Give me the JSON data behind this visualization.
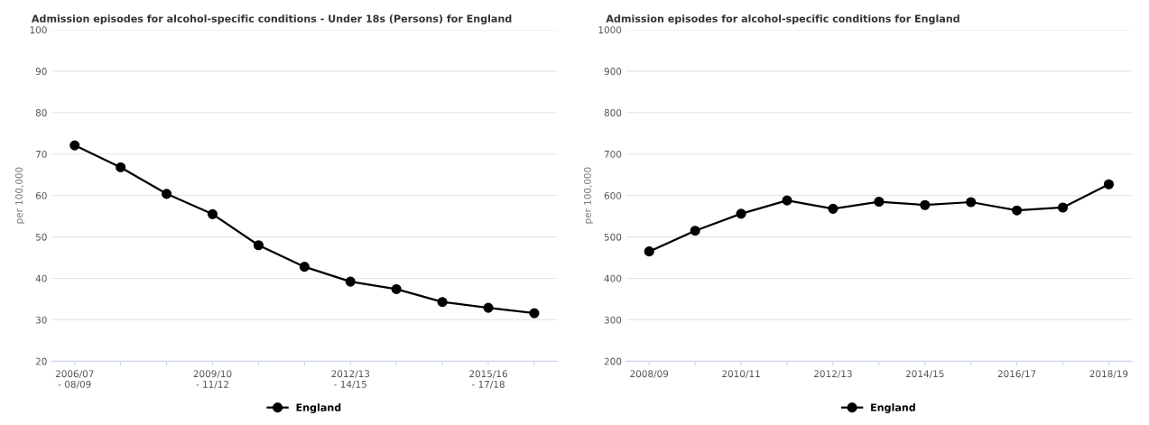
{
  "chart_data": [
    {
      "type": "line",
      "title": "Admission episodes for alcohol-specific conditions - Under 18s (Persons) for England",
      "ylabel": "per 100,000",
      "categories": [
        "2006/07\n- 08/09",
        null,
        null,
        "2009/10\n- 11/12",
        null,
        null,
        "2012/13\n- 14/15",
        null,
        null,
        "2015/16\n- 17/18",
        null
      ],
      "series": [
        {
          "name": "England",
          "color": "#000000",
          "values": [
            72.1,
            66.8,
            60.4,
            55.5,
            48.0,
            42.8,
            39.2,
            37.4,
            34.3,
            32.9,
            31.6
          ]
        }
      ],
      "ylim": [
        20,
        100
      ],
      "yticks": [
        20,
        30,
        40,
        50,
        60,
        70,
        80,
        90,
        100
      ],
      "grid": "y",
      "legend": "bottom",
      "marker": "circle"
    },
    {
      "type": "line",
      "title": "Admission episodes for alcohol-specific conditions for England",
      "ylabel": "per 100,000",
      "categories": [
        "2008/09",
        null,
        "2010/11",
        null,
        "2012/13",
        null,
        "2014/15",
        null,
        "2016/17",
        null,
        "2018/19"
      ],
      "series": [
        {
          "name": "England",
          "color": "#000000",
          "values": [
            465,
            515,
            556,
            588,
            568,
            585,
            577,
            584,
            564,
            571,
            627
          ]
        }
      ],
      "ylim": [
        200,
        1000
      ],
      "yticks": [
        200,
        300,
        400,
        500,
        600,
        700,
        800,
        900,
        1000
      ],
      "grid": "y",
      "legend": "bottom",
      "marker": "circle"
    }
  ]
}
